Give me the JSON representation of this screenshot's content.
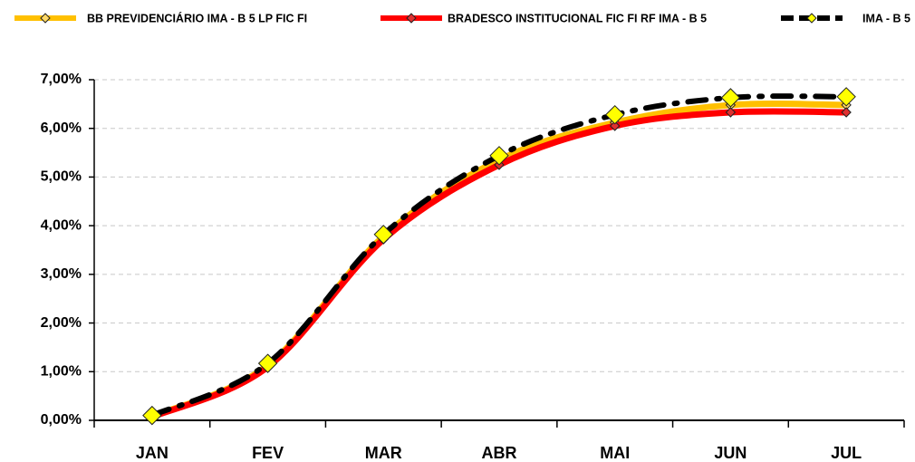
{
  "chart_data": {
    "type": "line",
    "categories": [
      "JAN",
      "FEV",
      "MAR",
      "ABR",
      "MAI",
      "JUN",
      "JUL"
    ],
    "series": [
      {
        "name": "BB PREVIDENCIÁRIO IMA - B 5 LP FIC FI",
        "color": "#ffc000",
        "marker_color": "#ffd966",
        "line_style": "solid",
        "values": [
          0.08,
          1.13,
          3.78,
          5.35,
          6.12,
          6.48,
          6.48
        ]
      },
      {
        "name": "BRADESCO INSTITUCIONAL FIC FI RF IMA - B 5",
        "color": "#ff0000",
        "marker_color": "#e03030",
        "line_style": "solid",
        "values": [
          0.07,
          1.1,
          3.72,
          5.25,
          6.05,
          6.33,
          6.33
        ]
      },
      {
        "name": "IMA - B 5",
        "color": "#000000",
        "marker_color": "#ffff00",
        "line_style": "dashed",
        "values": [
          0.1,
          1.17,
          3.82,
          5.44,
          6.28,
          6.63,
          6.65
        ]
      }
    ],
    "ylim": [
      0,
      7
    ],
    "yticks": [
      {
        "value": 0,
        "label": "0,00%"
      },
      {
        "value": 1,
        "label": "1,00%"
      },
      {
        "value": 2,
        "label": "2,00%"
      },
      {
        "value": 3,
        "label": "3,00%"
      },
      {
        "value": 4,
        "label": "4,00%"
      },
      {
        "value": 5,
        "label": "5,00%"
      },
      {
        "value": 6,
        "label": "6,00%"
      },
      {
        "value": 7,
        "label": "7,00%"
      }
    ],
    "grid": true,
    "legend": "top"
  }
}
